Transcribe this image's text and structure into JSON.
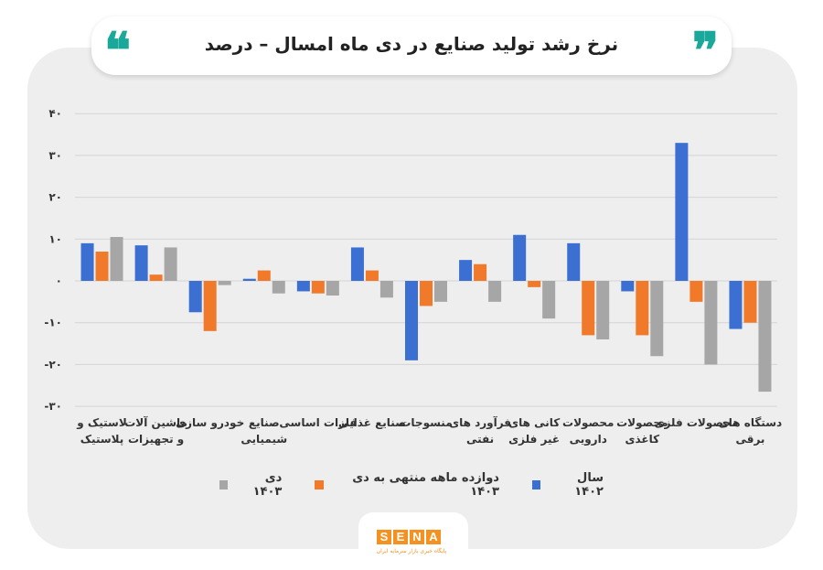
{
  "header": {
    "title": "نرخ رشد تولید صنایع در دی ماه امسال – درصد"
  },
  "logo": {
    "letters": [
      "S",
      "E",
      "N",
      "A"
    ],
    "tagline": "پایگاه خبری بازار سرمایه ایران"
  },
  "colors": {
    "accent_quote": "#1aa89a",
    "series_1402": "#3b6fd1",
    "series_twelve_month": "#f07a2a",
    "series_dey": "#a6a6a6",
    "brand": "#f39220"
  },
  "chart_data": {
    "type": "bar",
    "categories": [
      "لاستیک و پلاستیک",
      "ماشین آلات و تجهیزات",
      "خودرو سازی",
      "صنایع شیمیایی",
      "فلزات اساسی",
      "صنایع غذایی",
      "منسوجات",
      "فرآورد های نفتی",
      "کانی های غیر فلزی",
      "محصولات دارویی",
      "محصولات کاغذی",
      "محصولات فلزی",
      "دستگاه های برقی"
    ],
    "series": [
      {
        "name": "سال ۱۴۰۲",
        "color": "#3b6fd1",
        "values": [
          9,
          8.5,
          -7.5,
          0.5,
          -2.5,
          8,
          -19,
          5,
          11,
          9,
          -2.5,
          33,
          -11.5
        ]
      },
      {
        "name": "دوازده ماهه منتهی به دی ۱۴۰۳",
        "color": "#f07a2a",
        "values": [
          7,
          1.5,
          -12,
          2.5,
          -3,
          2.5,
          -6,
          4,
          -1.5,
          -13,
          -13,
          -5,
          -10
        ]
      },
      {
        "name": "دی ۱۴۰۳",
        "color": "#a6a6a6",
        "values": [
          10.5,
          8,
          -1,
          -3,
          -3.5,
          -4,
          -5,
          -5,
          -9,
          -14,
          -18,
          -20,
          -26.5
        ]
      }
    ],
    "yticks": [
      "۴۰",
      "۳۰",
      "۲۰",
      "۱۰",
      "۰",
      "-۱۰",
      "-۲۰",
      "-۳۰"
    ],
    "ytick_values": [
      40,
      30,
      20,
      10,
      0,
      -10,
      -20,
      -30
    ],
    "ylim": [
      -30,
      40
    ],
    "legend": "bottom-center",
    "grid": true
  }
}
